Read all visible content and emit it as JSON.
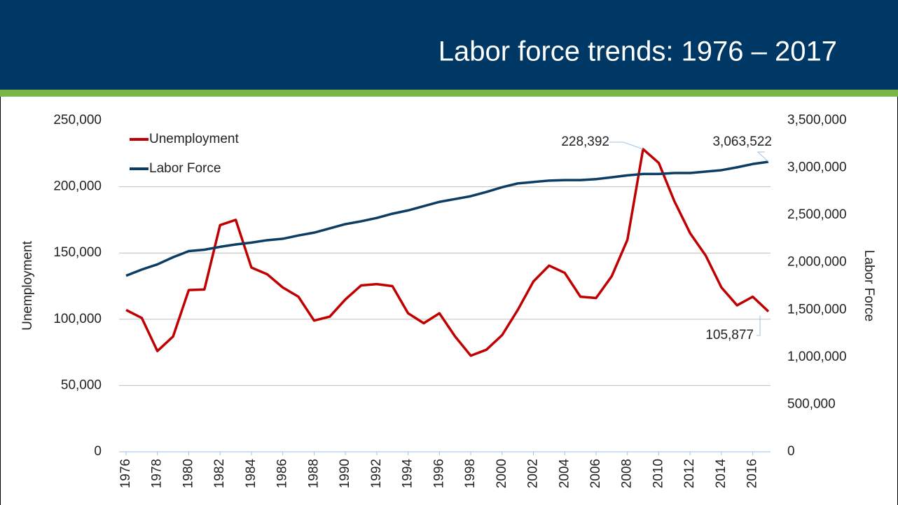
{
  "chart_data": {
    "type": "line",
    "title": "Labor force trends: 1976 – 2017",
    "ylabel": "Unemployment",
    "y2label": "Labor Force",
    "x": [
      1976,
      1977,
      1978,
      1979,
      1980,
      1981,
      1982,
      1983,
      1984,
      1985,
      1986,
      1987,
      1988,
      1989,
      1990,
      1991,
      1992,
      1993,
      1994,
      1995,
      1996,
      1997,
      1998,
      1999,
      2000,
      2001,
      2002,
      2003,
      2004,
      2005,
      2006,
      2007,
      2008,
      2009,
      2010,
      2011,
      2012,
      2013,
      2014,
      2015,
      2016,
      2017
    ],
    "xlim": [
      1976,
      2017
    ],
    "xticks": [
      1976,
      1978,
      1980,
      1982,
      1984,
      1986,
      1988,
      1990,
      1992,
      1994,
      1996,
      1998,
      2000,
      2002,
      2004,
      2006,
      2008,
      2010,
      2012,
      2014,
      2016
    ],
    "ylim": [
      0,
      250000
    ],
    "yticks": [
      0,
      {
        "value": 50000,
        "label": "50,000"
      },
      {
        "value": 100000,
        "label": "100,000"
      },
      {
        "value": 150000,
        "label": "150,000"
      },
      {
        "value": 200000,
        "label": "200,000"
      },
      {
        "value": 250000,
        "label": "250,000"
      }
    ],
    "y2lim": [
      0,
      3500000
    ],
    "y2ticks": [
      0,
      {
        "value": 500000,
        "label": "500,000"
      },
      {
        "value": 1000000,
        "label": "1,000,000"
      },
      {
        "value": 1500000,
        "label": "1,500,000"
      },
      {
        "value": 2000000,
        "label": "2,000,000"
      },
      {
        "value": 2500000,
        "label": "2,500,000"
      },
      {
        "value": 3000000,
        "label": "3,000,000"
      },
      {
        "value": 3500000,
        "label": "3,500,000"
      }
    ],
    "grid": true,
    "legend": "upper left",
    "series": [
      {
        "name": "Unemployment",
        "color": "#c00000",
        "values": [
          107000,
          101000,
          76000,
          87000,
          122000,
          122500,
          171000,
          175000,
          139000,
          134000,
          124000,
          117000,
          99000,
          102000,
          115000,
          125500,
          126500,
          125000,
          104500,
          97000,
          104500,
          87000,
          72500,
          77000,
          88000,
          107000,
          128500,
          140500,
          135000,
          117000,
          116000,
          132500,
          160000,
          228392,
          218000,
          189000,
          165000,
          148000,
          124000,
          110500,
          117000,
          105877
        ],
        "value_labels": [
          null,
          null,
          null,
          null,
          null,
          null,
          null,
          null,
          null,
          null,
          null,
          null,
          null,
          null,
          null,
          null,
          null,
          null,
          null,
          null,
          null,
          null,
          null,
          null,
          null,
          null,
          null,
          null,
          null,
          null,
          null,
          null,
          null,
          "228,392",
          null,
          null,
          null,
          null,
          null,
          null,
          null,
          "105,877"
        ]
      },
      {
        "name": "Labor Force",
        "color": "#0b3c64",
        "axis": "y2",
        "values": [
          1860000,
          1925000,
          1980000,
          2055000,
          2120000,
          2135000,
          2165000,
          2190000,
          2210000,
          2235000,
          2250000,
          2285000,
          2315000,
          2360000,
          2405000,
          2435000,
          2470000,
          2515000,
          2550000,
          2595000,
          2640000,
          2670000,
          2700000,
          2745000,
          2795000,
          2835000,
          2850000,
          2865000,
          2870000,
          2870000,
          2880000,
          2900000,
          2920000,
          2935000,
          2935000,
          2945000,
          2945000,
          2960000,
          2975000,
          3005000,
          3040000,
          3063522
        ],
        "value_labels": [
          null,
          null,
          null,
          null,
          null,
          null,
          null,
          null,
          null,
          null,
          null,
          null,
          null,
          null,
          null,
          null,
          null,
          null,
          null,
          null,
          null,
          null,
          null,
          null,
          null,
          null,
          null,
          null,
          null,
          null,
          null,
          null,
          null,
          null,
          null,
          null,
          null,
          null,
          null,
          null,
          null,
          "3,063,522"
        ]
      }
    ]
  }
}
